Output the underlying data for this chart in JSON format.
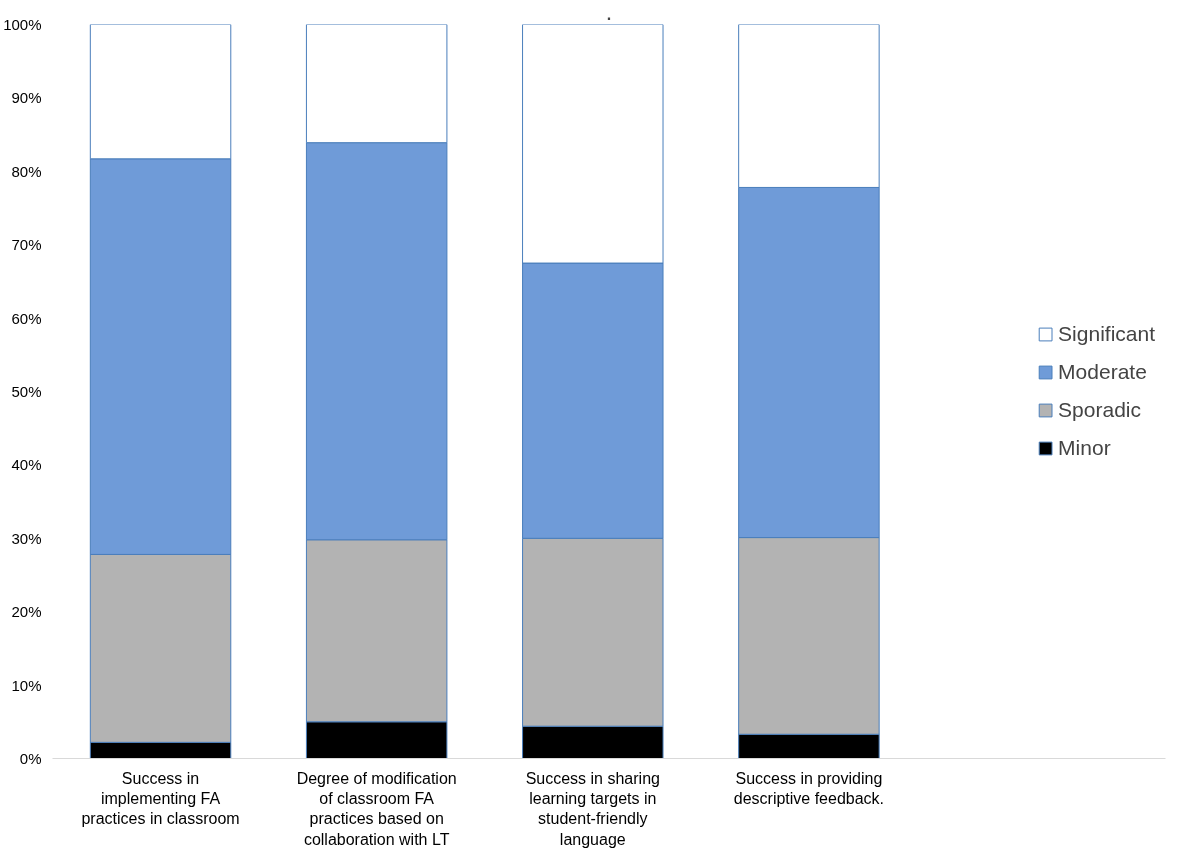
{
  "chart_data": {
    "type": "bar",
    "title": ".",
    "stacked": true,
    "categories": [
      "Success in implementing FA practices in classroom",
      "Degree of modification of classroom FA practices based on collaboration with LT",
      "Success in sharing learning targets in student-friendly language",
      "Success in providing descriptive feedback."
    ],
    "series": [
      {
        "name": "Minor",
        "color": "#000000",
        "values": [
          2.2,
          5.0,
          4.4,
          3.3
        ]
      },
      {
        "name": "Sporadic",
        "color": "#b3b3b3",
        "values": [
          25.6,
          24.8,
          25.6,
          26.8
        ]
      },
      {
        "name": "Moderate",
        "color": "#6f9bd8",
        "values": [
          53.9,
          54.1,
          37.5,
          47.7
        ]
      },
      {
        "name": "Significant",
        "color": "#ffffff",
        "values": [
          18.3,
          16.1,
          32.5,
          22.2
        ]
      }
    ],
    "ylim": [
      0,
      100
    ],
    "yticks": [
      {
        "value": 0,
        "label": "0%"
      },
      {
        "value": 10,
        "label": "10%"
      },
      {
        "value": 20,
        "label": "20%"
      },
      {
        "value": 30,
        "label": "30%"
      },
      {
        "value": 40,
        "label": "40%"
      },
      {
        "value": 50,
        "label": "50%"
      },
      {
        "value": 60,
        "label": "60%"
      },
      {
        "value": 70,
        "label": "70%"
      },
      {
        "value": 80,
        "label": "80%"
      },
      {
        "value": 90,
        "label": "90%"
      },
      {
        "value": 100,
        "label": "100%"
      }
    ],
    "grid": false,
    "legend": "right"
  }
}
